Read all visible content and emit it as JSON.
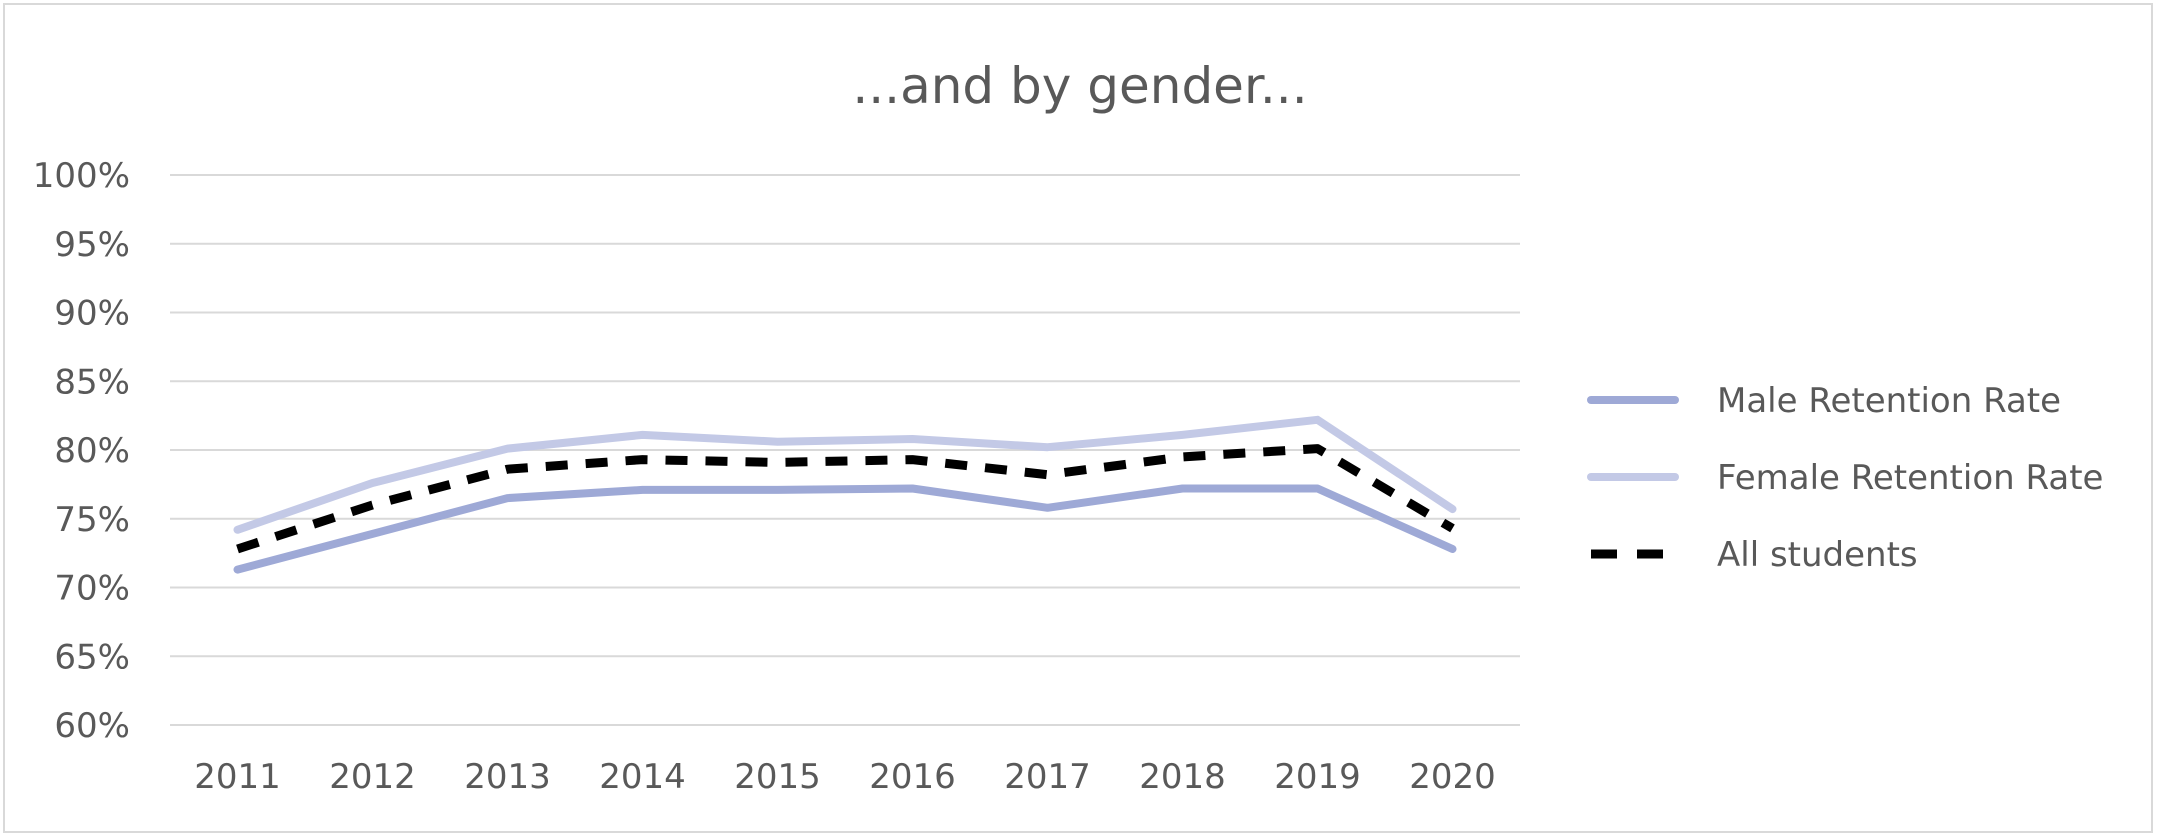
{
  "chart_data": {
    "type": "line",
    "title": "...and by gender...",
    "xlabel": "",
    "ylabel": "",
    "categories": [
      "2011",
      "2012",
      "2013",
      "2014",
      "2015",
      "2016",
      "2017",
      "2018",
      "2019",
      "2020"
    ],
    "y_ticks": [
      "60%",
      "65%",
      "70%",
      "75%",
      "80%",
      "85%",
      "90%",
      "95%",
      "100%"
    ],
    "ylim": [
      0.6,
      1.0
    ],
    "grid": true,
    "legend_position": "right",
    "series": [
      {
        "name": "Male Retention Rate",
        "values": [
          0.713,
          0.739,
          0.765,
          0.771,
          0.771,
          0.772,
          0.758,
          0.772,
          0.772,
          0.728
        ],
        "color": "#9ea9d6",
        "style": "solid"
      },
      {
        "name": "Female Retention Rate",
        "values": [
          0.742,
          0.776,
          0.801,
          0.811,
          0.806,
          0.808,
          0.802,
          0.811,
          0.822,
          0.757
        ],
        "color": "#c3c9e6",
        "style": "solid"
      },
      {
        "name": "All students",
        "values": [
          0.728,
          0.76,
          0.786,
          0.793,
          0.791,
          0.793,
          0.782,
          0.795,
          0.801,
          0.743
        ],
        "color": "#000000",
        "style": "dashed"
      }
    ]
  }
}
